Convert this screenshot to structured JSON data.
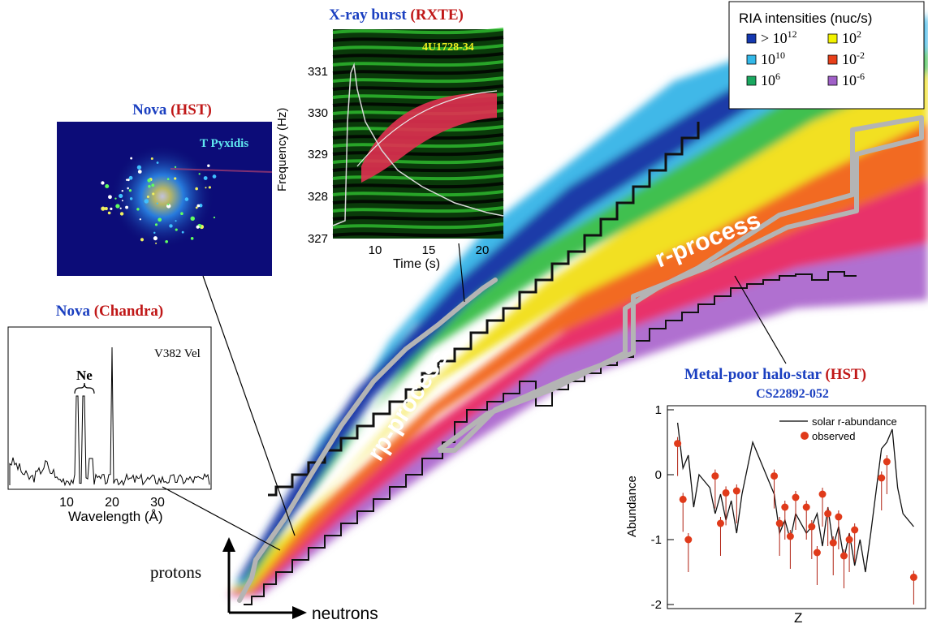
{
  "legend": {
    "title": "RIA intensities (nuc/s)",
    "items": [
      {
        "prefix": "> ",
        "base": "10",
        "exp": "12",
        "color": "#1438b0"
      },
      {
        "prefix": "",
        "base": "10",
        "exp": "2",
        "color": "#f2f200"
      },
      {
        "prefix": "",
        "base": "10",
        "exp": "10",
        "color": "#33b8e8"
      },
      {
        "prefix": "",
        "base": "10",
        "exp": "-2",
        "color": "#e8401a"
      },
      {
        "prefix": "",
        "base": "10",
        "exp": "6",
        "color": "#1aa860"
      },
      {
        "prefix": "",
        "base": "10",
        "exp": "-6",
        "color": "#a060c8"
      }
    ]
  },
  "nova_hst": {
    "title_blue": "Nova ",
    "title_red": "(HST)",
    "object_label": "T Pyxidis"
  },
  "xray": {
    "title_blue": "X-ray burst ",
    "title_red": "(RXTE)",
    "object_label": "4U1728-34",
    "ylabel": "Frequency (Hz)",
    "xlabel": "Time (s)",
    "yticks": [
      "331",
      "330",
      "329",
      "328",
      "327"
    ],
    "xticks": [
      "10",
      "15",
      "20"
    ]
  },
  "nova_chandra": {
    "title_blue": "Nova ",
    "title_red": "(Chandra)",
    "object_label": "V382 Vel",
    "peak_label": "Ne",
    "xlabel": "Wavelength (Å)",
    "xticks": [
      "10",
      "20",
      "30"
    ]
  },
  "chart_labels": {
    "rp_process": "rp-process",
    "r_process": "r-process",
    "protons": "protons",
    "neutrons": "neutrons"
  },
  "halo": {
    "title_blue": "Metal-poor halo-star ",
    "title_red": "(HST)",
    "subtitle": "CS22892-052",
    "ylabel": "Abundance",
    "xlabel": "Z",
    "yticks": [
      "1",
      "0",
      "-1",
      "-2"
    ],
    "legend_line": "solar r-abundance",
    "legend_dot": "observed"
  },
  "chart_data": {
    "type": "scatter",
    "xlabel": "Z",
    "ylabel": "Abundance",
    "ylim": [
      -2,
      1
    ],
    "series": [
      {
        "name": "solar r-abundance",
        "x": [
          38,
          39,
          40,
          41,
          42,
          44,
          45,
          46,
          47,
          48,
          49,
          50,
          52,
          56,
          57,
          58,
          59,
          60,
          62,
          63,
          64,
          65,
          66,
          67,
          68,
          69,
          70,
          71,
          72,
          73,
          74,
          76,
          77,
          78,
          79,
          80,
          82
        ],
        "y": [
          0.8,
          0.1,
          0.3,
          -0.5,
          0.0,
          -0.2,
          -0.6,
          -0.3,
          -0.7,
          -0.4,
          -0.9,
          -0.3,
          0.5,
          -0.3,
          -0.9,
          -0.7,
          -1.0,
          -0.6,
          -0.9,
          -0.8,
          -0.6,
          -1.1,
          -0.5,
          -1.1,
          -0.8,
          -1.3,
          -0.9,
          -1.4,
          -1.0,
          -1.5,
          -0.9,
          0.4,
          0.5,
          0.7,
          -0.2,
          -0.6,
          -0.8
        ]
      },
      {
        "name": "observed",
        "x": [
          38,
          39,
          40,
          45,
          46,
          47,
          49,
          56,
          57,
          58,
          59,
          60,
          62,
          63,
          64,
          65,
          66,
          67,
          68,
          69,
          70,
          71,
          76,
          77,
          82
        ],
        "y": [
          0.48,
          -0.38,
          -1.0,
          -0.02,
          -0.75,
          -0.28,
          -0.25,
          -0.02,
          -0.75,
          -0.5,
          -0.95,
          -0.35,
          -0.5,
          -0.8,
          -1.2,
          -0.3,
          -0.6,
          -1.05,
          -0.65,
          -1.25,
          -1.0,
          -0.85,
          -0.05,
          0.2,
          -1.58
        ]
      }
    ]
  }
}
